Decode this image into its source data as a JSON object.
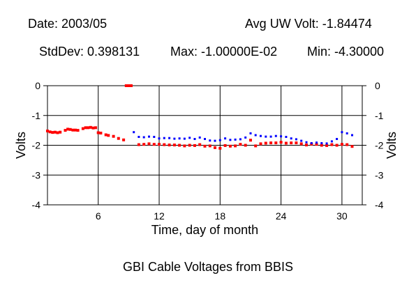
{
  "header": {
    "date": "Date: 2003/05",
    "avg": "Avg UW Volt: -1.84474",
    "stddev": "StdDev: 0.398131",
    "max": "Max: -1.00000E-02",
    "min": "Min: -4.30000"
  },
  "caption": "GBI Cable Voltages from BBIS",
  "chart_data": {
    "type": "scatter",
    "title": "GBI Cable Voltages from BBIS",
    "xlabel": "Time, day of month",
    "ylabel": "Volts",
    "xlim": [
      1,
      32
    ],
    "ylim": [
      -4,
      0
    ],
    "xticks": [
      6,
      12,
      18,
      24,
      30
    ],
    "yticks": [
      0,
      -1,
      -2,
      -3,
      -4
    ],
    "grid": true,
    "colors": {
      "red": "#ff0000",
      "blue": "#0000ff"
    },
    "series": [
      {
        "color": "#ff0000",
        "points": [
          [
            1.0,
            -1.52
          ],
          [
            1.25,
            -1.55
          ],
          [
            1.5,
            -1.57
          ],
          [
            1.75,
            -1.56
          ],
          [
            2.0,
            -1.58
          ],
          [
            2.25,
            -1.56
          ],
          [
            2.75,
            -1.5
          ],
          [
            3.0,
            -1.46
          ],
          [
            3.25,
            -1.47
          ],
          [
            3.5,
            -1.49
          ],
          [
            3.75,
            -1.49
          ],
          [
            4.0,
            -1.5
          ],
          [
            4.5,
            -1.44
          ],
          [
            4.75,
            -1.41
          ],
          [
            5.0,
            -1.41
          ],
          [
            5.25,
            -1.4
          ],
          [
            5.5,
            -1.42
          ],
          [
            5.75,
            -1.41
          ],
          [
            6.0,
            -1.58
          ],
          [
            6.25,
            -1.59
          ],
          [
            6.75,
            -1.65
          ],
          [
            7.0,
            -1.67
          ],
          [
            7.5,
            -1.7
          ],
          [
            8.0,
            -1.77
          ],
          [
            8.5,
            -1.82
          ],
          [
            8.75,
            0.0
          ],
          [
            9.0,
            0.0
          ],
          [
            9.25,
            0.0
          ],
          [
            10.0,
            -1.98
          ],
          [
            10.5,
            -1.97
          ],
          [
            11.0,
            -1.95
          ],
          [
            11.5,
            -1.97
          ],
          [
            12.0,
            -1.97
          ],
          [
            12.5,
            -1.98
          ],
          [
            13.0,
            -1.99
          ],
          [
            13.5,
            -1.99
          ],
          [
            14.0,
            -2.0
          ],
          [
            14.5,
            -2.02
          ],
          [
            15.0,
            -2.0
          ],
          [
            15.5,
            -2.01
          ],
          [
            16.0,
            -1.98
          ],
          [
            16.5,
            -2.03
          ],
          [
            17.0,
            -2.02
          ],
          [
            17.5,
            -2.08
          ],
          [
            18.0,
            -2.1
          ],
          [
            18.5,
            -2.01
          ],
          [
            19.0,
            -2.03
          ],
          [
            19.5,
            -2.02
          ],
          [
            20.0,
            -1.97
          ],
          [
            20.5,
            -2.0
          ],
          [
            21.0,
            -1.83
          ],
          [
            21.5,
            -2.02
          ],
          [
            22.0,
            -1.95
          ],
          [
            22.5,
            -1.93
          ],
          [
            23.0,
            -1.92
          ],
          [
            23.5,
            -1.92
          ],
          [
            24.0,
            -1.9
          ],
          [
            24.5,
            -1.93
          ],
          [
            25.0,
            -1.92
          ],
          [
            25.5,
            -1.92
          ],
          [
            26.0,
            -1.95
          ],
          [
            26.5,
            -1.99
          ],
          [
            27.0,
            -1.96
          ],
          [
            27.5,
            -1.97
          ],
          [
            28.0,
            -2.0
          ],
          [
            28.5,
            -2.01
          ],
          [
            29.0,
            -1.98
          ],
          [
            29.5,
            -2.0
          ],
          [
            30.0,
            -1.97
          ],
          [
            30.5,
            -1.98
          ],
          [
            31.0,
            -2.04
          ]
        ]
      },
      {
        "color": "#0000ff",
        "points": [
          [
            9.5,
            -1.56
          ],
          [
            10.0,
            -1.72
          ],
          [
            10.5,
            -1.73
          ],
          [
            11.0,
            -1.71
          ],
          [
            11.5,
            -1.72
          ],
          [
            12.0,
            -1.77
          ],
          [
            12.5,
            -1.76
          ],
          [
            13.0,
            -1.76
          ],
          [
            13.5,
            -1.78
          ],
          [
            14.0,
            -1.77
          ],
          [
            14.5,
            -1.78
          ],
          [
            15.0,
            -1.75
          ],
          [
            15.5,
            -1.79
          ],
          [
            16.0,
            -1.74
          ],
          [
            16.5,
            -1.79
          ],
          [
            17.0,
            -1.84
          ],
          [
            17.5,
            -1.85
          ],
          [
            18.0,
            -1.83
          ],
          [
            18.5,
            -1.77
          ],
          [
            19.0,
            -1.82
          ],
          [
            19.5,
            -1.81
          ],
          [
            20.0,
            -1.8
          ],
          [
            20.5,
            -1.74
          ],
          [
            21.0,
            -1.6
          ],
          [
            21.5,
            -1.66
          ],
          [
            22.0,
            -1.69
          ],
          [
            22.5,
            -1.71
          ],
          [
            23.0,
            -1.71
          ],
          [
            23.5,
            -1.69
          ],
          [
            24.0,
            -1.7
          ],
          [
            24.5,
            -1.72
          ],
          [
            25.0,
            -1.77
          ],
          [
            25.5,
            -1.8
          ],
          [
            26.0,
            -1.85
          ],
          [
            26.5,
            -1.9
          ],
          [
            27.0,
            -1.93
          ],
          [
            27.5,
            -1.91
          ],
          [
            28.0,
            -1.93
          ],
          [
            28.5,
            -1.94
          ],
          [
            29.0,
            -1.87
          ],
          [
            29.5,
            -1.79
          ],
          [
            30.0,
            -1.56
          ],
          [
            30.5,
            -1.6
          ],
          [
            31.0,
            -1.66
          ]
        ]
      }
    ]
  }
}
